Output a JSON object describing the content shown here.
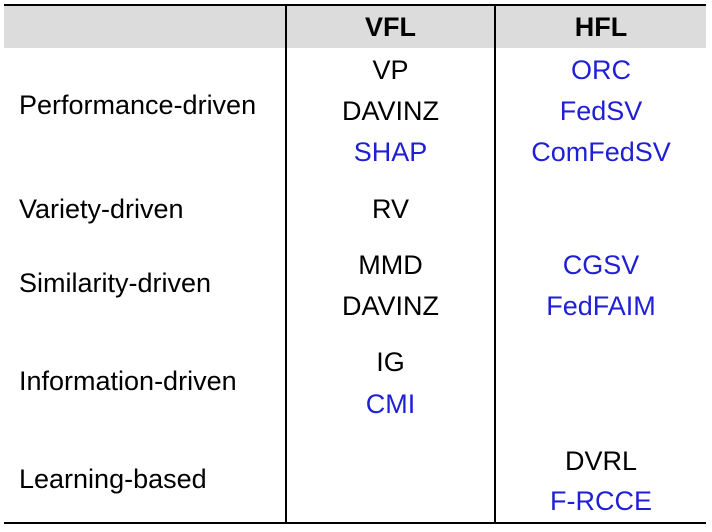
{
  "header": {
    "col1": "",
    "col2": "VFL",
    "col3": "HFL"
  },
  "colors": {
    "link_blue": "#1f1fd6",
    "header_bg": "#dcdcdc"
  },
  "rows": [
    {
      "label": "Performance-driven",
      "vfl": [
        {
          "text": "VP",
          "blue": false
        },
        {
          "text": "DAVINZ",
          "blue": false
        },
        {
          "text": "SHAP",
          "blue": true
        }
      ],
      "hfl": [
        {
          "text": "ORC",
          "blue": true
        },
        {
          "text": "FedSV",
          "blue": true
        },
        {
          "text": "ComFedSV",
          "blue": true
        }
      ]
    },
    {
      "label": "Variety-driven",
      "vfl": [
        {
          "text": "RV",
          "blue": false
        }
      ],
      "hfl": []
    },
    {
      "label": "Similarity-driven",
      "vfl": [
        {
          "text": "MMD",
          "blue": false
        },
        {
          "text": "DAVINZ",
          "blue": false
        }
      ],
      "hfl": [
        {
          "text": "CGSV",
          "blue": true
        },
        {
          "text": "FedFAIM",
          "blue": true
        }
      ]
    },
    {
      "label": "Information-driven",
      "vfl": [
        {
          "text": "IG",
          "blue": false
        },
        {
          "text": "CMI",
          "blue": true
        }
      ],
      "hfl": []
    },
    {
      "label": "Learning-based",
      "vfl": [],
      "hfl": [
        {
          "text": "DVRL",
          "blue": false
        },
        {
          "text": "F-RCCE",
          "blue": true
        }
      ]
    }
  ]
}
